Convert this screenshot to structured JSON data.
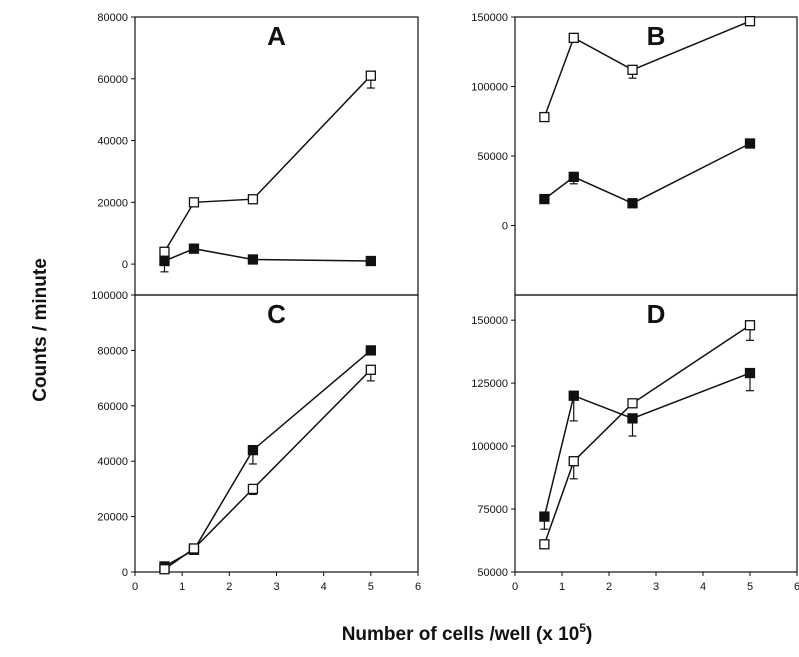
{
  "figure": {
    "ylabel": "Counts / minute",
    "xlabel_main": "Number of cells /well (x 10",
    "xlabel_sup": "5",
    "xlabel_end": ")"
  },
  "chart_data": [
    {
      "type": "line",
      "panel": "A",
      "x": [
        0.625,
        1.25,
        2.5,
        5
      ],
      "xlim": [
        0,
        6
      ],
      "ylim": [
        -10000,
        80000
      ],
      "xticks": [],
      "yticks": [
        0,
        20000,
        40000,
        60000,
        80000
      ],
      "series": [
        {
          "marker": "open-square",
          "values": [
            4000,
            20000,
            21000,
            61000
          ],
          "errors": [
            0,
            0,
            0,
            4000
          ]
        },
        {
          "marker": "filled-square",
          "values": [
            1000,
            5000,
            1500,
            1000
          ],
          "errors": [
            3500,
            0,
            0,
            0
          ]
        }
      ]
    },
    {
      "type": "line",
      "panel": "B",
      "x": [
        0.625,
        1.25,
        2.5,
        5
      ],
      "xlim": [
        0,
        6
      ],
      "ylim": [
        -50000,
        150000
      ],
      "xticks": [],
      "yticks": [
        0,
        50000,
        100000,
        150000
      ],
      "series": [
        {
          "marker": "open-square",
          "values": [
            78000,
            135000,
            112000,
            147000
          ],
          "errors": [
            0,
            0,
            6000,
            0
          ]
        },
        {
          "marker": "filled-square",
          "values": [
            19000,
            35000,
            16000,
            59000
          ],
          "errors": [
            0,
            5000,
            0,
            0
          ]
        }
      ]
    },
    {
      "type": "line",
      "panel": "C",
      "x": [
        0.625,
        1.25,
        2.5,
        5
      ],
      "xlim": [
        0,
        6
      ],
      "ylim": [
        0,
        100000
      ],
      "xticks": [
        0,
        1,
        2,
        3,
        4,
        5,
        6
      ],
      "yticks": [
        0,
        20000,
        40000,
        60000,
        80000,
        100000
      ],
      "series": [
        {
          "marker": "filled-square",
          "values": [
            2000,
            8000,
            44000,
            80000
          ],
          "errors": [
            0,
            0,
            5000,
            0
          ]
        },
        {
          "marker": "open-square",
          "values": [
            1000,
            8500,
            30000,
            73000
          ],
          "errors": [
            0,
            0,
            2000,
            4000
          ]
        }
      ]
    },
    {
      "type": "line",
      "panel": "D",
      "x": [
        0.625,
        1.25,
        2.5,
        5
      ],
      "xlim": [
        0,
        6
      ],
      "ylim": [
        50000,
        160000
      ],
      "xticks": [
        0,
        1,
        2,
        3,
        4,
        5,
        6
      ],
      "yticks": [
        50000,
        75000,
        100000,
        125000,
        150000
      ],
      "series": [
        {
          "marker": "filled-square",
          "values": [
            72000,
            120000,
            111000,
            129000
          ],
          "errors": [
            5000,
            10000,
            7000,
            7000
          ]
        },
        {
          "marker": "open-square",
          "values": [
            61000,
            94000,
            117000,
            148000
          ],
          "errors": [
            0,
            7000,
            0,
            6000
          ]
        }
      ]
    }
  ]
}
